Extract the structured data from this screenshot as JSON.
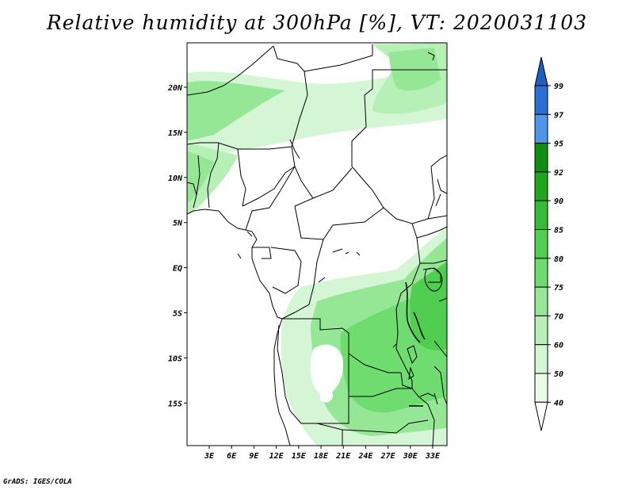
{
  "title": "Relative humidity at 300hPa [%], VT: 2020031103",
  "credit": "GrADS: IGES/COLA",
  "map": {
    "lat_labels": [
      "20N",
      "15N",
      "10N",
      "5N",
      "EQ",
      "5S",
      "10S",
      "15S"
    ],
    "lon_labels": [
      "3E",
      "6E",
      "9E",
      "12E",
      "15E",
      "18E",
      "21E",
      "24E",
      "27E",
      "30E",
      "33E"
    ]
  },
  "colorbar": {
    "labels": [
      "99",
      "97",
      "95",
      "92",
      "90",
      "85",
      "80",
      "75",
      "70",
      "60",
      "50",
      "40"
    ],
    "colors": {
      "top_arrow": "#1f5fc4",
      "b99": "#2a6fd6",
      "b97": "#4c97ec",
      "b95": "#0e8f10",
      "b92": "#1ea61e",
      "b90": "#35bb35",
      "b85": "#4fce4f",
      "b80": "#6edc6e",
      "b75": "#95e795",
      "b70": "#b6f0b6",
      "b60": "#d4f6d4",
      "b50": "#eafbea",
      "bottom_arrow": "#ffffff"
    }
  }
}
